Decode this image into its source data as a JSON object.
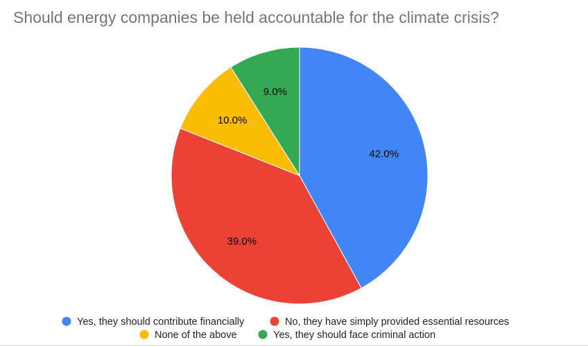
{
  "chart_data": {
    "type": "pie",
    "title": "Should energy companies be held accountable for the climate crisis?",
    "slices": [
      {
        "label": "Yes, they should contribute financially",
        "value": 42.0,
        "display": "42.0%",
        "color": "#4285F4"
      },
      {
        "label": "No, they have simply provided essential resources",
        "value": 39.0,
        "display": "39.0%",
        "color": "#EA4335"
      },
      {
        "label": "None of the above",
        "value": 10.0,
        "display": "10.0%",
        "color": "#FBBC04"
      },
      {
        "label": "Yes, they should face criminal action",
        "value": 9.0,
        "display": "9.0%",
        "color": "#34A853"
      }
    ],
    "legend_position": "bottom"
  }
}
